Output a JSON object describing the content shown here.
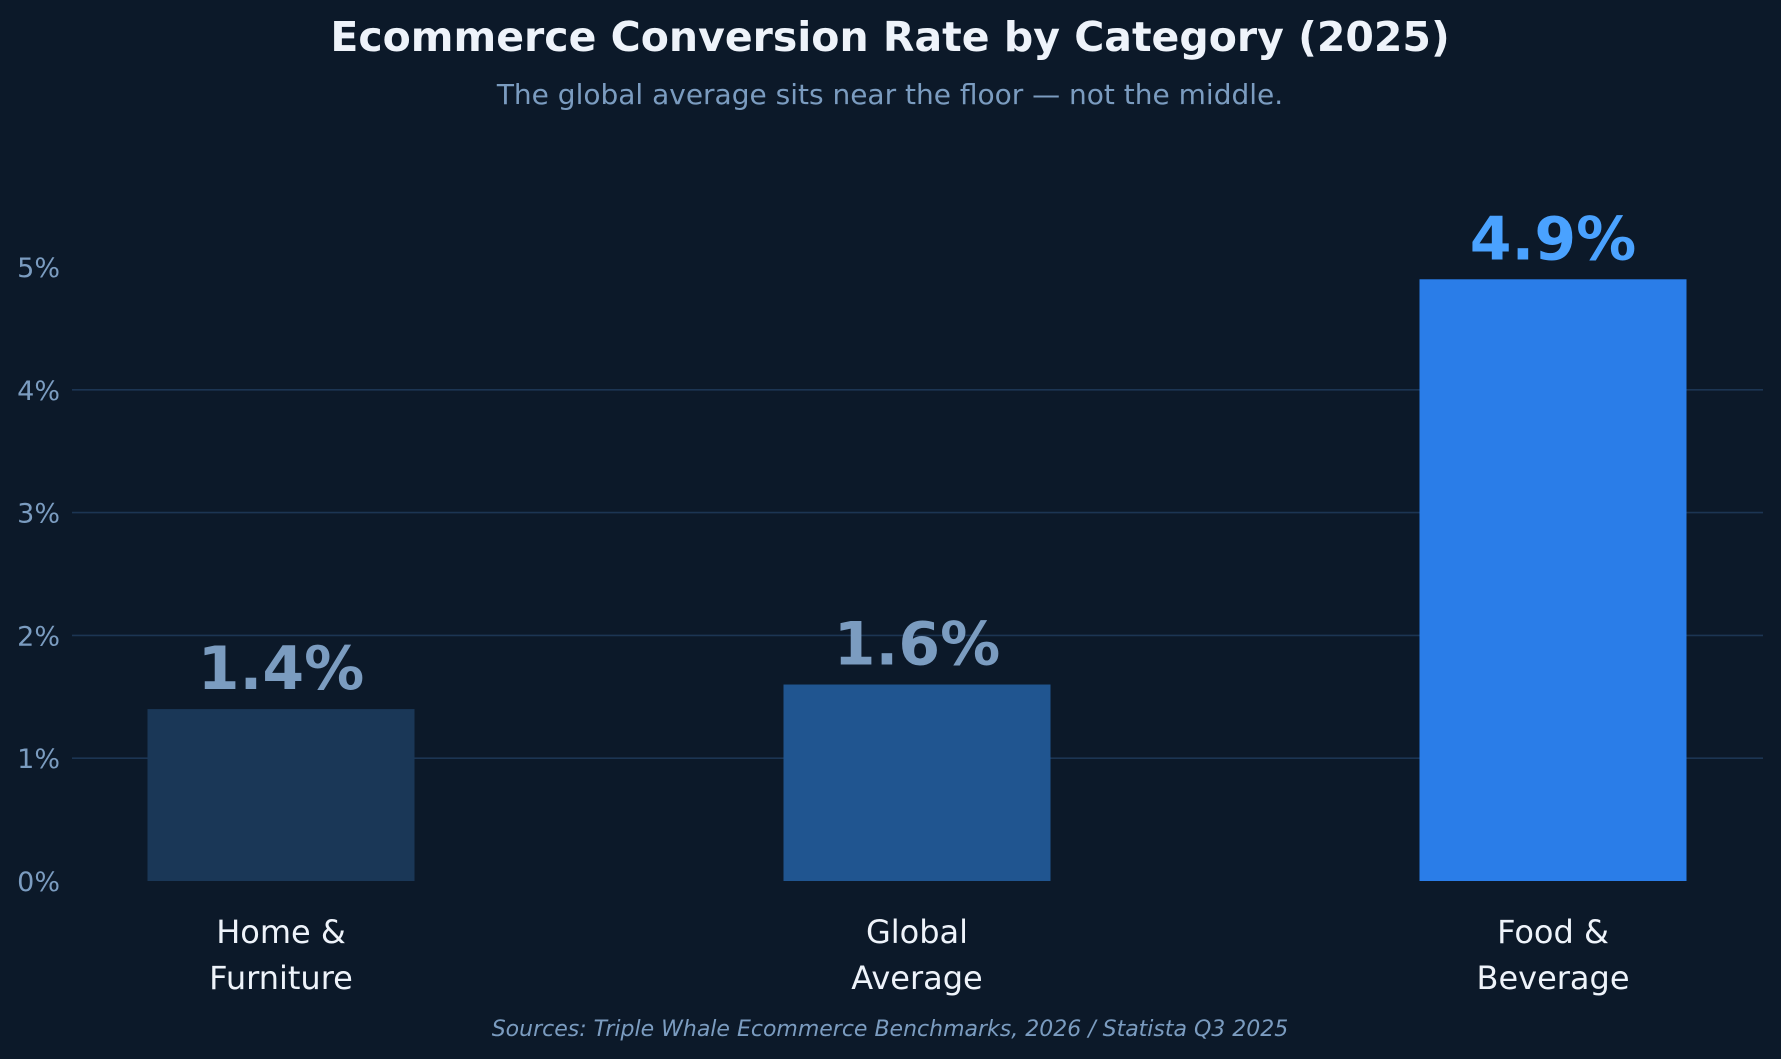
{
  "chart_data": {
    "type": "bar",
    "title": "Ecommerce Conversion Rate by Category (2025)",
    "subtitle": "The global average sits near the floor — not the middle.",
    "source": "Sources: Triple Whale Ecommerce Benchmarks, 2026 / Statista Q3 2025",
    "categories": [
      [
        "Home &",
        "Furniture"
      ],
      [
        "Global",
        "Average"
      ],
      [
        "Food &",
        "Beverage"
      ]
    ],
    "values": [
      1.4,
      1.6,
      4.9
    ],
    "value_labels": [
      "1.4%",
      "1.6%",
      "4.9%"
    ],
    "bar_colors": [
      "#1a3757",
      "#205590",
      "#2a7de8"
    ],
    "label_colors": [
      "#7b9cc0",
      "#7b9cc0",
      "#4aa2ff"
    ],
    "y_ticks": [
      0,
      1,
      2,
      3,
      4,
      5
    ],
    "y_tick_labels": [
      "0%",
      "1%",
      "2%",
      "3%",
      "4%",
      "5%"
    ],
    "ylim": [
      0,
      5
    ],
    "grid": "horizontal",
    "xlabel": "",
    "ylabel": ""
  }
}
